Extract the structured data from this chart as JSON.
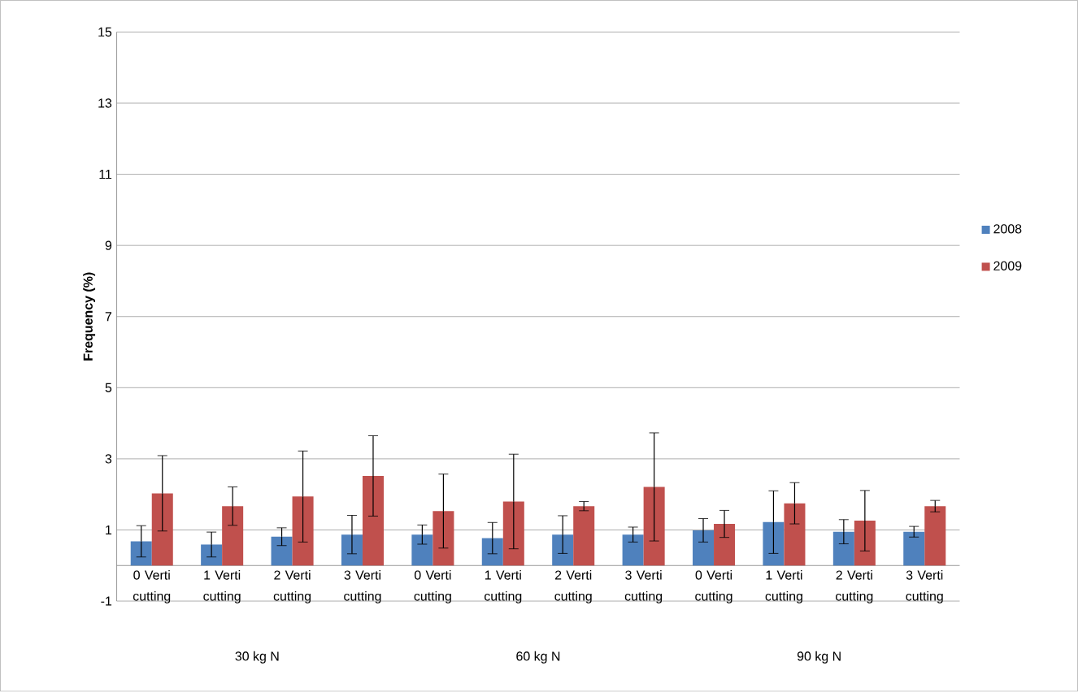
{
  "chart_data": {
    "type": "bar",
    "ylabel": "Frequency (%)",
    "categories": [
      "0 Verti cutting",
      "1 Verti cutting",
      "2 Verti cutting",
      "3 Verti cutting",
      "0 Verti cutting",
      "1 Verti cutting",
      "2 Verti cutting",
      "3 Verti cutting",
      "0 Verti cutting",
      "1 Verti cutting",
      "2 Verti cutting",
      "3 Verti cutting"
    ],
    "annotations": [
      "30 kg N",
      "60 kg N",
      "90 kg N"
    ],
    "series": [
      {
        "name": "2008",
        "color": "#4f81bd",
        "values": [
          0.68,
          0.59,
          0.81,
          0.87,
          0.87,
          0.77,
          0.87,
          0.87,
          0.99,
          1.22,
          0.95,
          0.95
        ],
        "errors": [
          0.44,
          0.35,
          0.25,
          0.54,
          0.27,
          0.44,
          0.53,
          0.21,
          0.33,
          0.88,
          0.34,
          0.15
        ]
      },
      {
        "name": "2009",
        "color": "#c0504d",
        "values": [
          2.03,
          1.67,
          1.94,
          2.52,
          1.53,
          1.8,
          1.67,
          2.21,
          1.17,
          1.75,
          1.26,
          1.67
        ],
        "errors": [
          1.06,
          0.54,
          1.28,
          1.13,
          1.04,
          1.33,
          0.13,
          1.52,
          0.38,
          0.58,
          0.85,
          0.16
        ]
      }
    ],
    "ylim": [
      -1,
      15
    ],
    "yticks": [
      -1,
      1,
      3,
      5,
      7,
      9,
      11,
      13,
      15
    ],
    "grid": "y",
    "legend": "right"
  }
}
